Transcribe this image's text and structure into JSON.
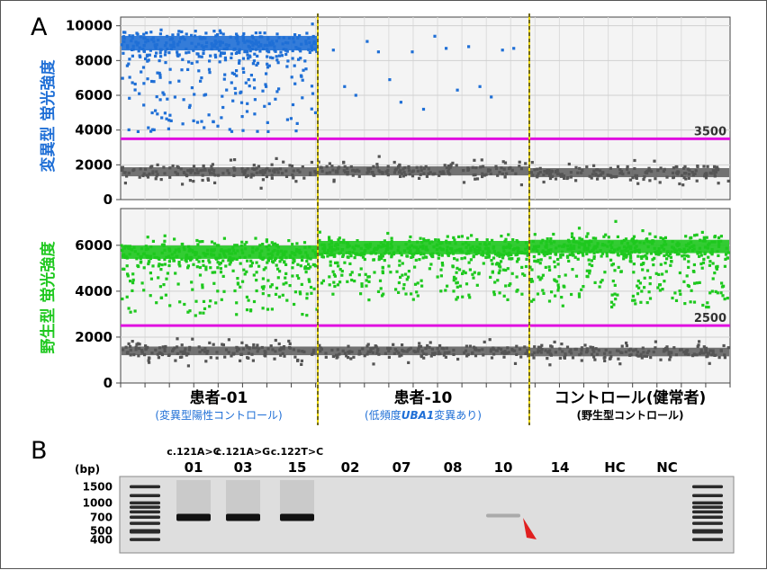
{
  "panel_a_label": "A",
  "panel_b_label": "B",
  "colors": {
    "mutant": "#1f6fd6",
    "wildtype": "#1ec81e",
    "negative": "#555555",
    "threshold": "#e010e0",
    "divider": "#e8d400",
    "subcaption": "#1f6fd6",
    "arrow": "#e02020",
    "gel_bg": "#dedede"
  },
  "chart_data": [
    {
      "type": "scatter",
      "ylabel": "変異型 蛍光強度",
      "ylim": [
        0,
        10500
      ],
      "yticks": [
        0,
        2000,
        4000,
        6000,
        8000,
        10000
      ],
      "threshold": 3500,
      "threshold_label": "3500",
      "grid": true,
      "groups": [
        {
          "positive_center": 9000,
          "positive_count": 1400,
          "scattered_min": 3900,
          "negative_center": 1600,
          "negative_count": 1700
        },
        {
          "positive_points": [
            8600,
            6500,
            6000,
            9100,
            8500,
            6900,
            5600,
            8500,
            5200,
            9400,
            8700,
            6300,
            8800,
            6500,
            5900,
            8600,
            8700
          ],
          "negative_center": 1650,
          "negative_count": 1800
        },
        {
          "negative_center": 1550,
          "negative_count": 1800
        }
      ]
    },
    {
      "type": "scatter",
      "ylabel": "野生型 蛍光強度",
      "ylim": [
        0,
        7600
      ],
      "yticks": [
        0,
        2000,
        4000,
        6000
      ],
      "threshold": 2500,
      "threshold_label": "2500",
      "grid": true,
      "groups": [
        {
          "positive_center": 5700,
          "positive_count": 1400,
          "scattered_min": 2900,
          "negative_center": 1400,
          "negative_count": 1700
        },
        {
          "positive_center": 5900,
          "positive_count": 1600,
          "scattered_min": 3600,
          "negative_center": 1400,
          "negative_count": 1800
        },
        {
          "positive_center": 5950,
          "positive_count": 1600,
          "scattered_min": 3300,
          "negative_center": 1350,
          "negative_count": 1800
        }
      ]
    }
  ],
  "groups": [
    {
      "name": "患者-01",
      "subcaption": "(変異型陽性コントロール)",
      "sub_parts": [
        "(変異型陽性コントロール)",
        "",
        ""
      ]
    },
    {
      "name": "患者-10",
      "subcaption": "(低頻度UBA1変異あり)",
      "sub_parts": [
        "(低頻度",
        "UBA1",
        "変異あり)"
      ]
    },
    {
      "name": "コントロール(健常者)",
      "subcaption": "(野生型コントロール)",
      "sub_parts": [
        "(野生型コントロール)",
        "",
        ""
      ]
    }
  ],
  "gel": {
    "unit_label": "(bp)",
    "ladder_labels": [
      "1500",
      "1000",
      "700",
      "500",
      "400"
    ],
    "ladder_bp": [
      1500,
      1000,
      700,
      500,
      400
    ],
    "lanes": [
      {
        "label": "01",
        "mutation": "c.121A>C",
        "band": 1.0
      },
      {
        "label": "03",
        "mutation": "c.121A>G",
        "band": 0.95
      },
      {
        "label": "15",
        "mutation": "c.122T>C",
        "band": 0.95
      },
      {
        "label": "02",
        "mutation": "",
        "band": 0
      },
      {
        "label": "07",
        "mutation": "",
        "band": 0
      },
      {
        "label": "08",
        "mutation": "",
        "band": 0
      },
      {
        "label": "10",
        "mutation": "",
        "band": 0.12
      },
      {
        "label": "14",
        "mutation": "",
        "band": 0
      },
      {
        "label": "HC",
        "mutation": "",
        "band": 0
      },
      {
        "label": "NC",
        "mutation": "",
        "band": 0
      }
    ],
    "band_bp": 700
  }
}
